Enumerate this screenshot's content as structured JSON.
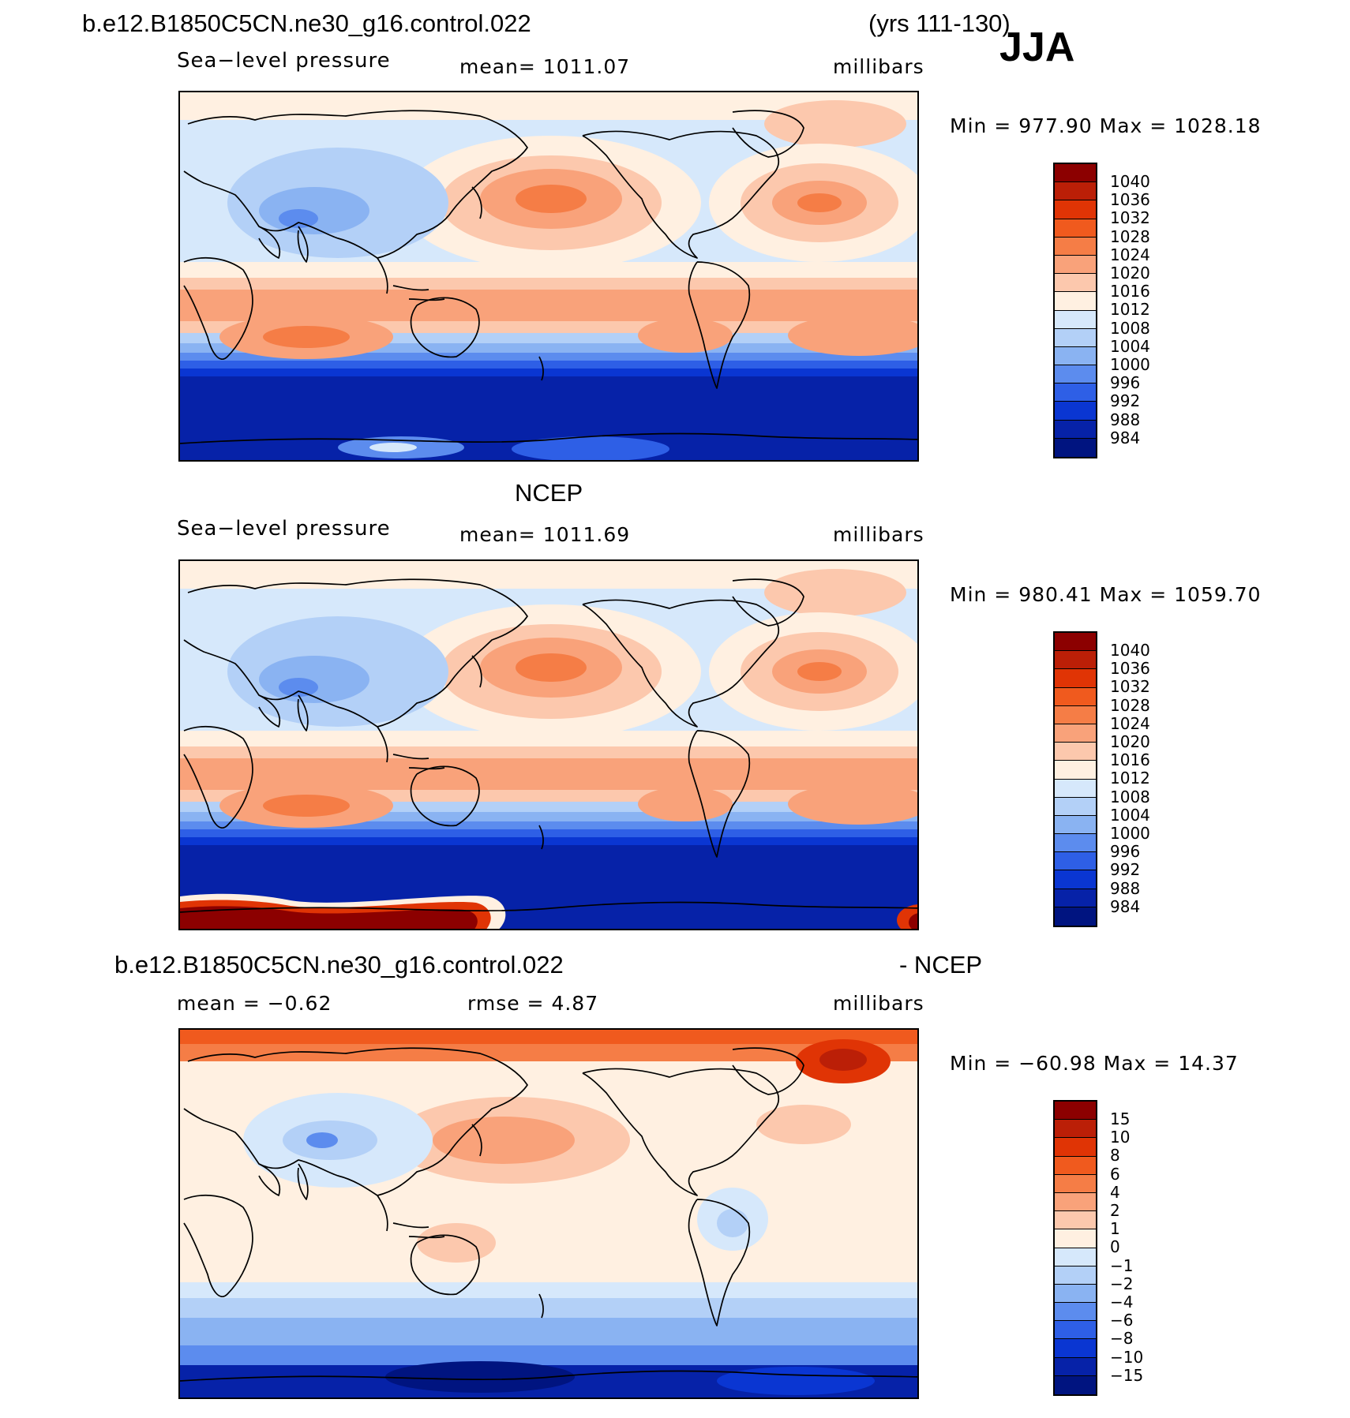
{
  "header": {
    "case_name": "b.e12.B1850C5CN.ne30_g16.control.022",
    "years": "(yrs 111-130)",
    "season": "JJA"
  },
  "panels": [
    {
      "title": "",
      "variable": "Sea−level pressure",
      "mean_text": "mean=  1011.07",
      "units": "millibars",
      "minmax": "Min  =  977.90  Max  =  1028.18",
      "style": "model"
    },
    {
      "title": "NCEP",
      "variable": "Sea−level pressure",
      "mean_text": "mean=  1011.69",
      "units": "millibars",
      "minmax": "Min  =  980.41  Max  =  1059.70",
      "style": "obs"
    },
    {
      "title_left": "b.e12.B1850C5CN.ne30_g16.control.022",
      "title_right": "- NCEP",
      "mean_text": "mean  =    −0.62",
      "rmse_text": "rmse  =     4.87",
      "units": "millibars",
      "minmax": "Min  =  −60.98  Max  =    14.37",
      "style": "diff"
    }
  ],
  "colorbars": {
    "slp_levels": [
      "1040",
      "1036",
      "1032",
      "1028",
      "1024",
      "1020",
      "1016",
      "1012",
      "1008",
      "1004",
      "1000",
      "996",
      "992",
      "988",
      "984"
    ],
    "diff_levels": [
      "15",
      "10",
      "8",
      "6",
      "4",
      "2",
      "1",
      "0",
      "−1",
      "−2",
      "−4",
      "−6",
      "−8",
      "−10",
      "−15"
    ],
    "colors": [
      "#8c0000",
      "#bb1f07",
      "#e03405",
      "#f05a1e",
      "#f57d46",
      "#f9a27a",
      "#fcc8ad",
      "#fff0e1",
      "#d6e8fb",
      "#b3d0f7",
      "#8ab3f2",
      "#5c8cee",
      "#2e5fe6",
      "#0a36d2",
      "#0622a8",
      "#001480"
    ]
  }
}
